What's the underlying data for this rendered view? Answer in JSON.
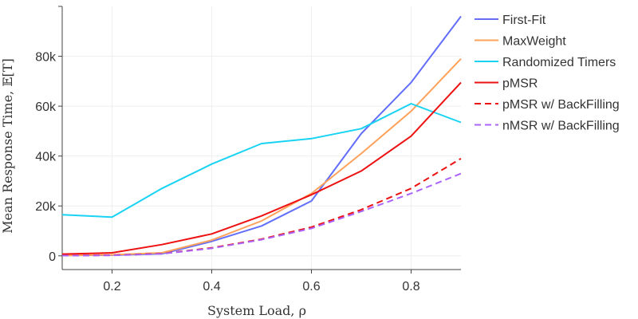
{
  "chart_data": {
    "type": "line",
    "xlabel": "System Load, ρ",
    "ylabel": "Mean Response Time, 𝔼[T]",
    "xlim": [
      0.1,
      0.9
    ],
    "ylim": [
      -5500,
      100000
    ],
    "x_ticks": [
      0.2,
      0.4,
      0.6,
      0.8
    ],
    "x_tick_labels": [
      "0.2",
      "0.4",
      "0.6",
      "0.8"
    ],
    "y_ticks": [
      0,
      20000,
      40000,
      60000,
      80000
    ],
    "y_tick_labels": [
      "0",
      "20k",
      "40k",
      "60k",
      "80k"
    ],
    "grid": true,
    "legend_position": "right",
    "x": [
      0.1,
      0.2,
      0.3,
      0.4,
      0.5,
      0.6,
      0.7,
      0.8,
      0.9
    ],
    "series": [
      {
        "name": "First-Fit",
        "color": "#636efa",
        "dash": "solid",
        "values": [
          200,
          300,
          800,
          5800,
          12000,
          22000,
          49000,
          69500,
          96000
        ]
      },
      {
        "name": "MaxWeight",
        "color": "#ffa15a",
        "dash": "solid",
        "values": [
          200,
          400,
          1200,
          6300,
          14000,
          25000,
          41000,
          58000,
          79000
        ]
      },
      {
        "name": "Randomized Timers",
        "color": "#19d3f3",
        "dash": "solid",
        "values": [
          16500,
          15500,
          27000,
          36800,
          45000,
          47000,
          51000,
          61000,
          53500
        ]
      },
      {
        "name": "pMSR",
        "color": "#ee1111",
        "dash": "solid",
        "values": [
          700,
          1200,
          4500,
          8800,
          16000,
          24500,
          34000,
          48000,
          69500
        ]
      },
      {
        "name": "pMSR w/ BackFilling",
        "color": "#ee1111",
        "dash": "dashed",
        "values": [
          100,
          250,
          900,
          3200,
          6700,
          11500,
          18500,
          27000,
          39000
        ]
      },
      {
        "name": "nMSR w/ BackFilling",
        "color": "#ab63fa",
        "dash": "dashed",
        "values": [
          100,
          200,
          800,
          3000,
          6500,
          11000,
          17800,
          25000,
          33000
        ]
      }
    ]
  }
}
